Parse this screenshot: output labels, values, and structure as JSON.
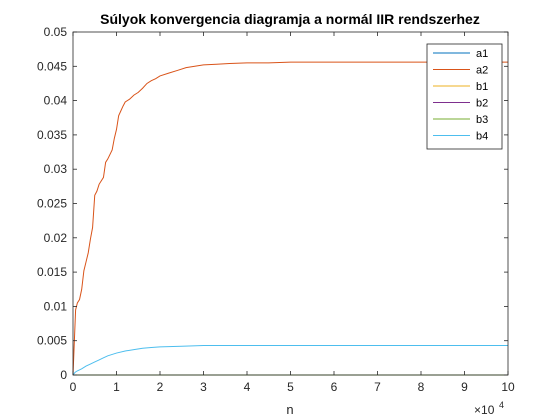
{
  "chart_data": {
    "type": "line",
    "title": "Súlyok konvergencia diagramja a normál IIR rendszerhez",
    "xlabel": "n",
    "ylabel": "",
    "x_exponent": "10",
    "x_exponent_power": "4",
    "xlim": [
      0,
      100000
    ],
    "ylim": [
      0,
      0.05
    ],
    "x_ticks": [
      0,
      1,
      2,
      3,
      4,
      5,
      6,
      7,
      8,
      9,
      10
    ],
    "x_tick_labels": [
      "0",
      "1",
      "2",
      "3",
      "4",
      "5",
      "6",
      "7",
      "8",
      "9",
      "10"
    ],
    "y_ticks": [
      0,
      0.005,
      0.01,
      0.015,
      0.02,
      0.025,
      0.03,
      0.035,
      0.04,
      0.045,
      0.05
    ],
    "y_tick_labels": [
      "0",
      "0.005",
      "0.01",
      "0.015",
      "0.02",
      "0.025",
      "0.03",
      "0.035",
      "0.04",
      "0.045",
      "0.05"
    ],
    "grid": false,
    "legend_position": "top-right",
    "series": [
      {
        "name": "a1",
        "color": "#0072BD",
        "x": [
          0,
          500,
          1000,
          2000,
          5000,
          10000,
          20000,
          30000,
          50000,
          100000
        ],
        "y": [
          0,
          0,
          0,
          0,
          0,
          0,
          0,
          0,
          0,
          0
        ]
      },
      {
        "name": "a2",
        "color": "#D95319",
        "x": [
          0,
          600,
          1000,
          1500,
          2000,
          2500,
          3000,
          3500,
          4000,
          4500,
          5000,
          5500,
          6000,
          7000,
          7500,
          8000,
          9000,
          9500,
          10000,
          10500,
          11000,
          11500,
          12000,
          13000,
          14000,
          15000,
          16000,
          17000,
          18000,
          19000,
          20000,
          22000,
          24000,
          26000,
          28000,
          30000,
          33000,
          36000,
          40000,
          45000,
          50000,
          60000,
          70000,
          80000,
          90000,
          100000
        ],
        "y": [
          0,
          0.0095,
          0.0105,
          0.011,
          0.0125,
          0.0152,
          0.0165,
          0.0178,
          0.0198,
          0.0215,
          0.0262,
          0.0268,
          0.0278,
          0.0288,
          0.031,
          0.0315,
          0.0328,
          0.0345,
          0.0358,
          0.0378,
          0.0385,
          0.0392,
          0.0398,
          0.0402,
          0.0408,
          0.0412,
          0.0418,
          0.0425,
          0.0429,
          0.0432,
          0.0436,
          0.044,
          0.0444,
          0.0448,
          0.045,
          0.0452,
          0.0453,
          0.0454,
          0.0455,
          0.0455,
          0.0456,
          0.0456,
          0.0456,
          0.0456,
          0.0456,
          0.0456
        ]
      },
      {
        "name": "b1",
        "color": "#EDB120",
        "x": [
          0,
          500,
          1000,
          2000,
          5000,
          10000,
          20000,
          30000,
          50000,
          100000
        ],
        "y": [
          0,
          0,
          0,
          0,
          0,
          0,
          0,
          0,
          0,
          0
        ]
      },
      {
        "name": "b2",
        "color": "#7E2F8E",
        "x": [
          0,
          500,
          1000,
          2000,
          5000,
          10000,
          20000,
          30000,
          50000,
          100000
        ],
        "y": [
          0,
          0,
          0,
          0,
          0,
          0,
          0,
          0,
          0,
          0
        ]
      },
      {
        "name": "b3",
        "color": "#77AC30",
        "x": [
          0,
          500,
          1000,
          2000,
          5000,
          10000,
          20000,
          30000,
          50000,
          100000
        ],
        "y": [
          0,
          0,
          0,
          0,
          0,
          0,
          0,
          0,
          0,
          0
        ]
      },
      {
        "name": "b4",
        "color": "#4DBEEE",
        "x": [
          0,
          500,
          1000,
          2000,
          3000,
          4000,
          5000,
          6000,
          7000,
          8000,
          9000,
          10000,
          12000,
          14000,
          16000,
          18000,
          20000,
          25000,
          30000,
          40000,
          50000,
          70000,
          100000
        ],
        "y": [
          0,
          0.0004,
          0.0006,
          0.0009,
          0.0013,
          0.0016,
          0.0019,
          0.0022,
          0.0025,
          0.0028,
          0.003,
          0.0032,
          0.0035,
          0.0037,
          0.0039,
          0.004,
          0.0041,
          0.0042,
          0.0043,
          0.0043,
          0.0043,
          0.0043,
          0.0043
        ]
      }
    ]
  }
}
